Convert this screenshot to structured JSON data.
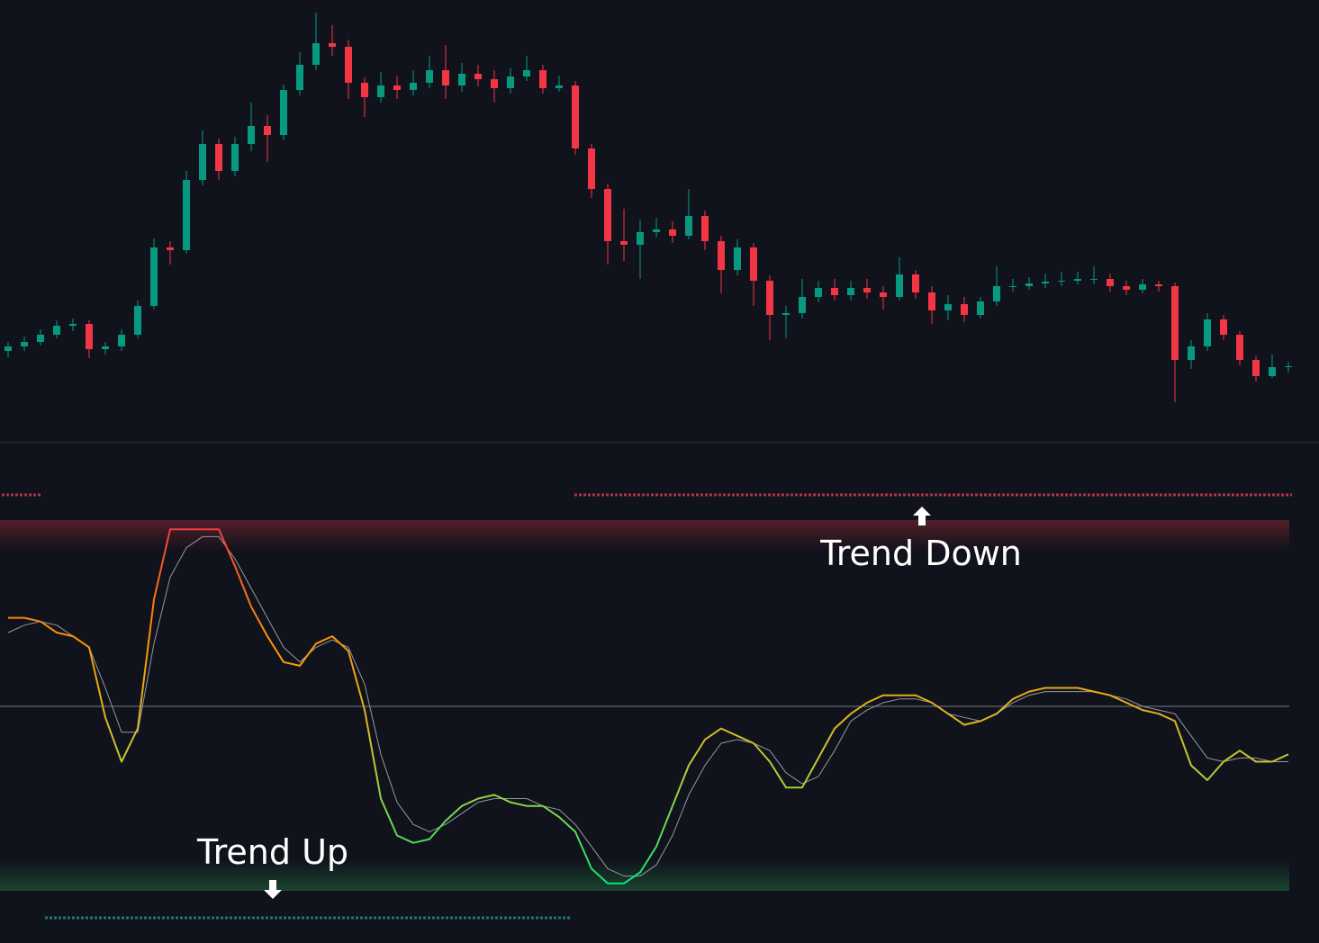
{
  "chart_data": [
    {
      "type": "candlestick",
      "open": [
        100,
        105,
        110,
        118,
        128,
        130,
        102,
        105,
        118,
        150,
        215,
        212,
        290,
        330,
        300,
        330,
        350,
        340,
        390,
        418,
        442,
        438,
        398,
        382,
        395,
        390,
        398,
        412,
        395,
        408,
        402,
        392,
        405,
        412,
        392,
        395,
        325,
        280,
        222,
        218,
        232,
        235,
        228,
        250,
        222,
        190,
        215,
        178,
        140,
        142,
        160,
        170,
        162,
        170,
        165,
        160,
        185,
        165,
        145,
        152,
        140,
        155,
        172,
        172,
        175,
        177,
        178,
        180,
        180,
        172,
        168,
        174,
        172,
        90,
        105,
        135,
        118,
        90,
        72,
        82
      ],
      "high": [
        110,
        116,
        124,
        134,
        136,
        134,
        110,
        124,
        156,
        225,
        222,
        300,
        345,
        336,
        338,
        376,
        362,
        396,
        432,
        476,
        462,
        446,
        404,
        410,
        406,
        412,
        428,
        440,
        420,
        418,
        412,
        414,
        428,
        418,
        406,
        400,
        330,
        286,
        258,
        246,
        248,
        244,
        280,
        256,
        228,
        224,
        220,
        184,
        150,
        180,
        178,
        180,
        178,
        180,
        172,
        204,
        190,
        172,
        162,
        160,
        160,
        194,
        180,
        182,
        186,
        188,
        188,
        194,
        186,
        178,
        180,
        178,
        176,
        112,
        142,
        140,
        122,
        94,
        96,
        88
      ],
      "low": [
        93,
        100,
        106,
        114,
        122,
        92,
        96,
        100,
        114,
        146,
        196,
        208,
        284,
        290,
        294,
        322,
        310,
        334,
        384,
        412,
        428,
        380,
        360,
        376,
        380,
        384,
        392,
        380,
        388,
        394,
        376,
        386,
        400,
        386,
        388,
        318,
        270,
        196,
        200,
        180,
        226,
        220,
        224,
        212,
        164,
        184,
        150,
        112,
        114,
        136,
        154,
        156,
        156,
        158,
        146,
        156,
        158,
        130,
        134,
        132,
        136,
        150,
        166,
        168,
        170,
        172,
        174,
        174,
        166,
        162,
        164,
        166,
        43,
        80,
        100,
        112,
        84,
        66,
        70,
        76
      ],
      "close": [
        105,
        110,
        118,
        128,
        130,
        102,
        105,
        118,
        150,
        215,
        212,
        290,
        330,
        300,
        330,
        350,
        340,
        390,
        418,
        442,
        438,
        398,
        382,
        395,
        390,
        398,
        412,
        395,
        408,
        402,
        392,
        405,
        412,
        392,
        395,
        325,
        280,
        222,
        218,
        232,
        235,
        228,
        250,
        222,
        190,
        215,
        178,
        140,
        142,
        160,
        170,
        162,
        170,
        165,
        160,
        185,
        165,
        145,
        152,
        140,
        155,
        172,
        172,
        175,
        177,
        178,
        180,
        180,
        172,
        168,
        174,
        172,
        90,
        105,
        135,
        118,
        90,
        72,
        82,
        83
      ],
      "up_color": "#089981",
      "down_color": "#f23645",
      "ylim": [
        0,
        490
      ]
    },
    {
      "type": "line",
      "series": [
        {
          "color": [
            "#f23645",
            "#ff9800",
            "#c0ca33",
            "#00e676"
          ],
          "values": [
            74,
            74,
            73,
            70,
            69,
            66,
            47,
            35,
            44,
            79,
            98,
            98,
            98,
            98,
            88,
            77,
            69,
            62,
            61,
            67,
            69,
            65,
            49,
            25,
            15,
            13,
            14,
            19,
            23,
            25,
            26,
            24,
            23,
            23,
            20,
            16,
            6,
            2,
            2,
            5,
            12,
            23,
            34,
            41,
            44,
            42,
            40,
            35,
            28,
            28,
            36,
            44,
            48,
            51,
            53,
            53,
            53,
            51,
            48,
            45,
            46,
            48,
            52,
            54,
            55,
            55,
            55,
            54,
            53,
            51,
            49,
            48,
            46,
            34,
            30,
            35,
            38,
            35,
            35,
            37
          ]
        },
        {
          "color": "#9598a1",
          "values": [
            70,
            72,
            73,
            72,
            69,
            66,
            55,
            43,
            43,
            67,
            85,
            93,
            96,
            96,
            90,
            82,
            74,
            66,
            62,
            66,
            68,
            66,
            56,
            37,
            24,
            18,
            16,
            18,
            21,
            24,
            25,
            25,
            25,
            23,
            22,
            18,
            12,
            6,
            4,
            4,
            7,
            15,
            26,
            34,
            40,
            41,
            40,
            38,
            32,
            29,
            31,
            38,
            46,
            49,
            51,
            52,
            52,
            51,
            48,
            47,
            46,
            48,
            51,
            53,
            54,
            54,
            54,
            54,
            53,
            52,
            50,
            49,
            48,
            42,
            36,
            35,
            36,
            36,
            35,
            35
          ]
        }
      ],
      "ylim": [
        0,
        100
      ],
      "annotations": [
        "Trend Down",
        "Trend Up"
      ]
    }
  ]
}
